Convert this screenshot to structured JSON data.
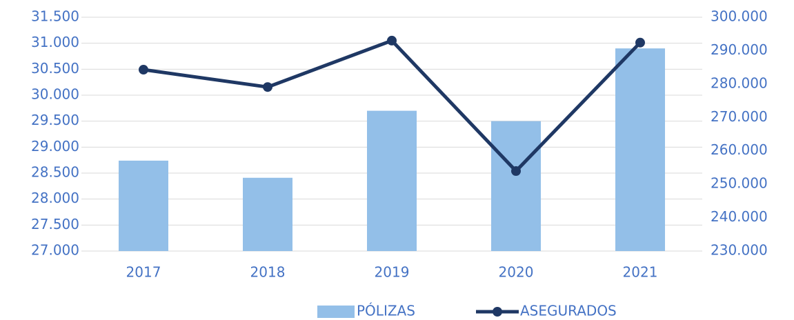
{
  "chart_data": {
    "type": "bar",
    "categories": [
      "2017",
      "2018",
      "2019",
      "2020",
      "2021"
    ],
    "series": [
      {
        "name": "PÓLIZAS",
        "type": "bar",
        "color": "#93bfe8",
        "values": [
          28740,
          28410,
          29700,
          29500,
          30900
        ]
      },
      {
        "name": "ASEGURADOS",
        "type": "line",
        "axis": "y2",
        "color": "#1f3864",
        "values": [
          284300,
          279100,
          293000,
          253950,
          292400
        ]
      }
    ],
    "ylim": [
      27000,
      31500
    ],
    "yticks": [
      {
        "value": 27000,
        "label": "27.000"
      },
      {
        "value": 27500,
        "label": "27.500"
      },
      {
        "value": 28000,
        "label": "28.000"
      },
      {
        "value": 28500,
        "label": "28.500"
      },
      {
        "value": 29000,
        "label": "29.000"
      },
      {
        "value": 29500,
        "label": "29.500"
      },
      {
        "value": 30000,
        "label": "30.000"
      },
      {
        "value": 30500,
        "label": "30.500"
      },
      {
        "value": 31000,
        "label": "31.000"
      },
      {
        "value": 31500,
        "label": "31.500"
      }
    ],
    "y2lim": [
      230000,
      300000
    ],
    "y2ticks": [
      {
        "value": 230000,
        "label": "230.000"
      },
      {
        "value": 240000,
        "label": "240.000"
      },
      {
        "value": 250000,
        "label": "250.000"
      },
      {
        "value": 260000,
        "label": "260.000"
      },
      {
        "value": 270000,
        "label": "270.000"
      },
      {
        "value": 280000,
        "label": "280.000"
      },
      {
        "value": 290000,
        "label": "290.000"
      },
      {
        "value": 300000,
        "label": "300.000"
      }
    ],
    "grid": true,
    "legend": "bottom"
  }
}
